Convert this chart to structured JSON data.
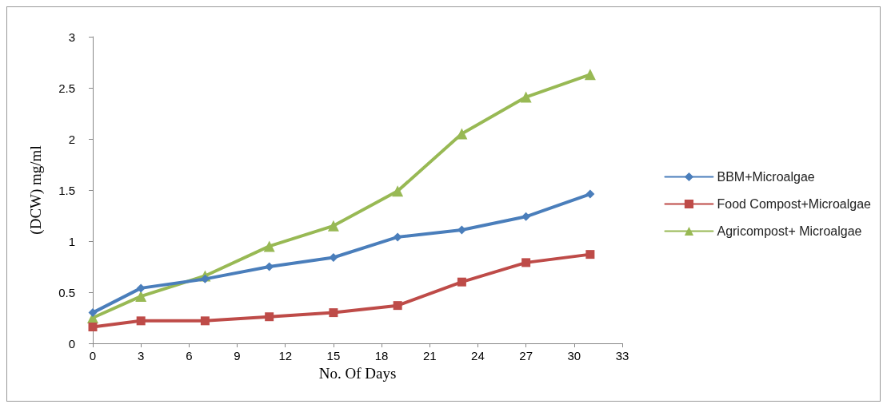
{
  "chart_data": {
    "type": "line",
    "xlabel": "No. Of Days",
    "ylabel": "(DCW) mg/ml",
    "x": [
      0,
      3,
      7,
      11,
      15,
      19,
      23,
      27,
      31
    ],
    "xlim": [
      0,
      33
    ],
    "xticks": [
      0,
      3,
      6,
      9,
      12,
      15,
      18,
      21,
      24,
      27,
      30,
      33
    ],
    "ylim": [
      0,
      3
    ],
    "yticks": [
      0,
      0.5,
      1,
      1.5,
      2,
      2.5,
      3
    ],
    "grid": false,
    "legend": "right",
    "line_style": "solid",
    "series": [
      {
        "name": "BBM+Microalgae",
        "color": "#4a7ebb",
        "marker": "diamond",
        "values": [
          0.3,
          0.54,
          0.63,
          0.75,
          0.84,
          1.04,
          1.11,
          1.24,
          1.46
        ]
      },
      {
        "name": "Food Compost+Microalgae",
        "color": "#be4b48",
        "marker": "square",
        "values": [
          0.16,
          0.22,
          0.22,
          0.26,
          0.3,
          0.37,
          0.6,
          0.79,
          0.87
        ]
      },
      {
        "name": "Agricompost+ Microalgae",
        "color": "#98b954",
        "marker": "triangle",
        "values": [
          0.25,
          0.46,
          0.66,
          0.95,
          1.15,
          1.49,
          2.05,
          2.41,
          2.63
        ]
      }
    ]
  }
}
